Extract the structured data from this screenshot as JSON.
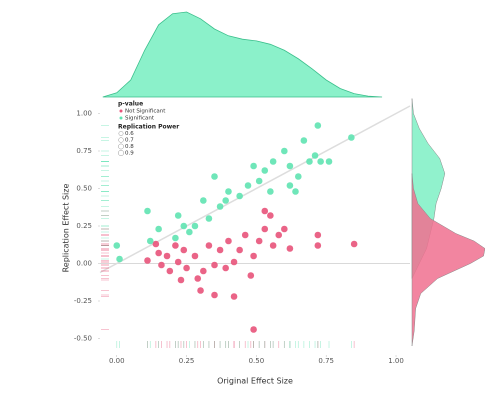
{
  "chart_data": {
    "type": "scatter",
    "x_label": "Original Effect Size",
    "y_label": "Replication Effect Size",
    "xlim": [
      -0.06,
      1.05
    ],
    "ylim": [
      -0.61,
      1.09
    ],
    "xticks": [
      {
        "value": 0,
        "label": "0.00"
      },
      {
        "value": 0.25,
        "label": "0.25"
      },
      {
        "value": 0.5,
        "label": "0.50"
      },
      {
        "value": 0.75,
        "label": "0.75"
      },
      {
        "value": 1,
        "label": "1.00"
      }
    ],
    "yticks": [
      {
        "value": -0.5,
        "label": "-0.50"
      },
      {
        "value": -0.25,
        "label": "-0.25"
      },
      {
        "value": 0,
        "label": "0.00"
      },
      {
        "value": 0.25,
        "label": "0.25"
      },
      {
        "value": 0.5,
        "label": "0.50"
      },
      {
        "value": 0.75,
        "label": "0.75"
      },
      {
        "value": 1,
        "label": "1.00"
      }
    ],
    "legend_title": "p-value",
    "size_legend_title": "Replication Power",
    "size_legend": [
      0.6,
      0.7,
      0.8,
      0.9
    ],
    "series": [
      {
        "name": "Not Significant",
        "color": "#e8537a",
        "x": [
          0.11,
          0.14,
          0.15,
          0.16,
          0.18,
          0.19,
          0.21,
          0.22,
          0.23,
          0.24,
          0.25,
          0.28,
          0.29,
          0.31,
          0.33,
          0.35,
          0.37,
          0.39,
          0.4,
          0.42,
          0.44,
          0.46,
          0.48,
          0.49,
          0.51,
          0.53,
          0.55,
          0.56,
          0.58,
          0.6,
          0.62,
          0.35,
          0.42,
          0.49,
          0.72,
          0.72,
          0.85,
          0.3,
          0.53
        ],
        "values": [
          0.02,
          0.13,
          0.07,
          -0.01,
          0.05,
          -0.05,
          0.12,
          0.01,
          -0.11,
          0.09,
          -0.03,
          0.05,
          -0.1,
          -0.05,
          0.12,
          -0.01,
          0.09,
          -0.03,
          0.15,
          0.01,
          0.09,
          0.19,
          -0.08,
          0.05,
          0.15,
          0.23,
          0.32,
          0.12,
          0.19,
          0.23,
          0.1,
          -0.21,
          -0.22,
          -0.44,
          0.19,
          0.12,
          0.13,
          -0.18,
          0.35
        ]
      },
      {
        "name": "Significant",
        "color": "#5fe3b1",
        "x": [
          0.0,
          0.01,
          0.12,
          0.15,
          0.21,
          0.22,
          0.24,
          0.26,
          0.28,
          0.31,
          0.33,
          0.35,
          0.37,
          0.39,
          0.4,
          0.44,
          0.47,
          0.49,
          0.51,
          0.53,
          0.55,
          0.56,
          0.6,
          0.62,
          0.64,
          0.65,
          0.67,
          0.69,
          0.71,
          0.72,
          0.73,
          0.76,
          0.84,
          0.11,
          0.62
        ],
        "values": [
          0.12,
          0.03,
          0.15,
          0.23,
          0.17,
          0.32,
          0.25,
          0.21,
          0.25,
          0.42,
          0.3,
          0.58,
          0.38,
          0.42,
          0.48,
          0.45,
          0.52,
          0.65,
          0.55,
          0.62,
          0.48,
          0.68,
          0.75,
          0.52,
          0.48,
          0.58,
          0.82,
          0.68,
          0.72,
          0.92,
          0.68,
          0.68,
          0.84,
          0.35,
          0.65
        ]
      }
    ],
    "x_density": {
      "color": "#7ef0c4",
      "x": [
        -0.05,
        0,
        0.05,
        0.1,
        0.15,
        0.2,
        0.25,
        0.3,
        0.35,
        0.4,
        0.45,
        0.5,
        0.55,
        0.6,
        0.65,
        0.7,
        0.75,
        0.8,
        0.85,
        0.9,
        0.95
      ],
      "values": [
        0,
        0.05,
        0.2,
        0.55,
        0.85,
        0.98,
        1,
        0.92,
        0.8,
        0.72,
        0.68,
        0.66,
        0.62,
        0.55,
        0.45,
        0.33,
        0.2,
        0.1,
        0.04,
        0.01,
        0
      ]
    },
    "y_density": [
      {
        "color": "#7ef0c4",
        "y": [
          -0.1,
          0,
          0.1,
          0.2,
          0.3,
          0.4,
          0.5,
          0.6,
          0.7,
          0.8,
          0.9,
          1.0,
          1.1
        ],
        "values": [
          0,
          0.1,
          0.2,
          0.25,
          0.3,
          0.33,
          0.4,
          0.45,
          0.38,
          0.22,
          0.1,
          0.02,
          0
        ]
      },
      {
        "color": "#f0708f",
        "y": [
          -0.55,
          -0.45,
          -0.3,
          -0.2,
          -0.1,
          0,
          0.05,
          0.1,
          0.15,
          0.2,
          0.3,
          0.4,
          0.5,
          0.6
        ],
        "values": [
          0,
          0.03,
          0.05,
          0.12,
          0.35,
          0.8,
          0.98,
          1,
          0.85,
          0.6,
          0.25,
          0.08,
          0.02,
          0
        ]
      }
    ]
  }
}
